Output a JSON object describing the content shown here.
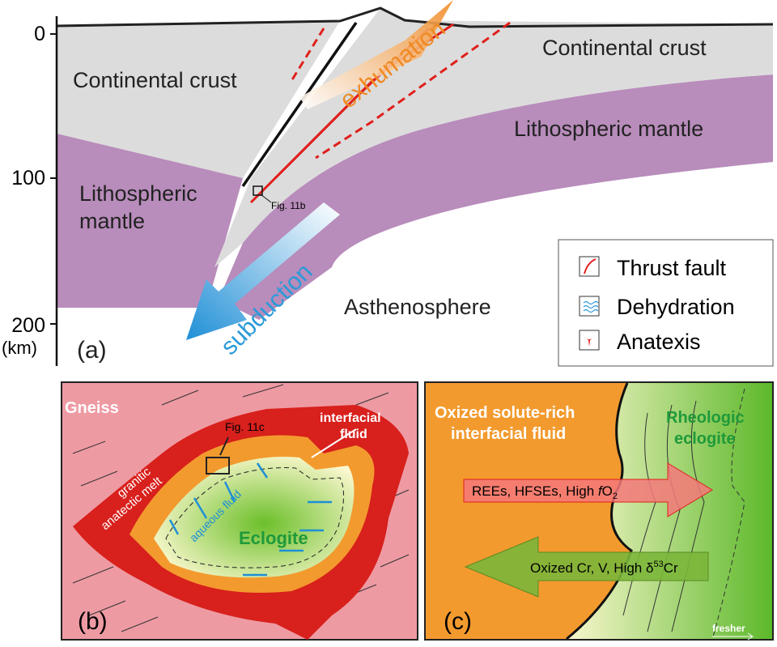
{
  "panel_a": {
    "label": "(a)",
    "depth_ticks": [
      "0",
      "100",
      "200"
    ],
    "depth_unit": "(km)",
    "left_crust": "Continental crust",
    "right_crust": "Continental crust",
    "left_mantle_line1": "Lithospheric",
    "left_mantle_line2": "mantle",
    "right_mantle": "Lithospheric mantle",
    "asthenosphere": "Asthenosphere",
    "exhumation": "exhumation",
    "subduction": "subduction",
    "fig_ref": "Fig. 11b",
    "legend": [
      {
        "label": "Thrust fault",
        "icon": "thrust-fault-icon"
      },
      {
        "label": "Dehydration",
        "icon": "dehydration-icon"
      },
      {
        "label": "Anatexis",
        "icon": "anatexis-icon"
      }
    ]
  },
  "panel_b": {
    "label": "(b)",
    "gneiss": "Gneiss",
    "melt_line1": "granitic",
    "melt_line2": "anatectic melt",
    "interfacial_line1": "interfacial",
    "interfacial_line2": "fluid",
    "fig_ref": "Fig. 11c",
    "aqueous": "aqueous fluid",
    "eclogite": "Eclogite"
  },
  "panel_c": {
    "label": "(c)",
    "fluid_line1": "Oxized solute-rich",
    "fluid_line2": "interfacial fluid",
    "eclogite_line1": "Rheologic",
    "eclogite_line2": "eclogite",
    "arrow_right_text": "REEs, HFSEs, High ",
    "arrow_right_f": "f",
    "arrow_right_o": "O",
    "arrow_right_sub": "2",
    "arrow_left_text": "Oxized Cr, V, High δ",
    "arrow_left_sup": "53",
    "arrow_left_end": "Cr",
    "fresher": "fresher"
  },
  "colors": {
    "crust": "#dcdcdc",
    "mantle": "#b88cbb",
    "fault": "#e0201b",
    "exhumation": "#f08a24",
    "subduction": "#2a9ad8",
    "gneiss": "#ee9aa3",
    "melt": "#d8201c",
    "interfacial": "#f39a2e",
    "eclogite": "#6cbf2a"
  }
}
